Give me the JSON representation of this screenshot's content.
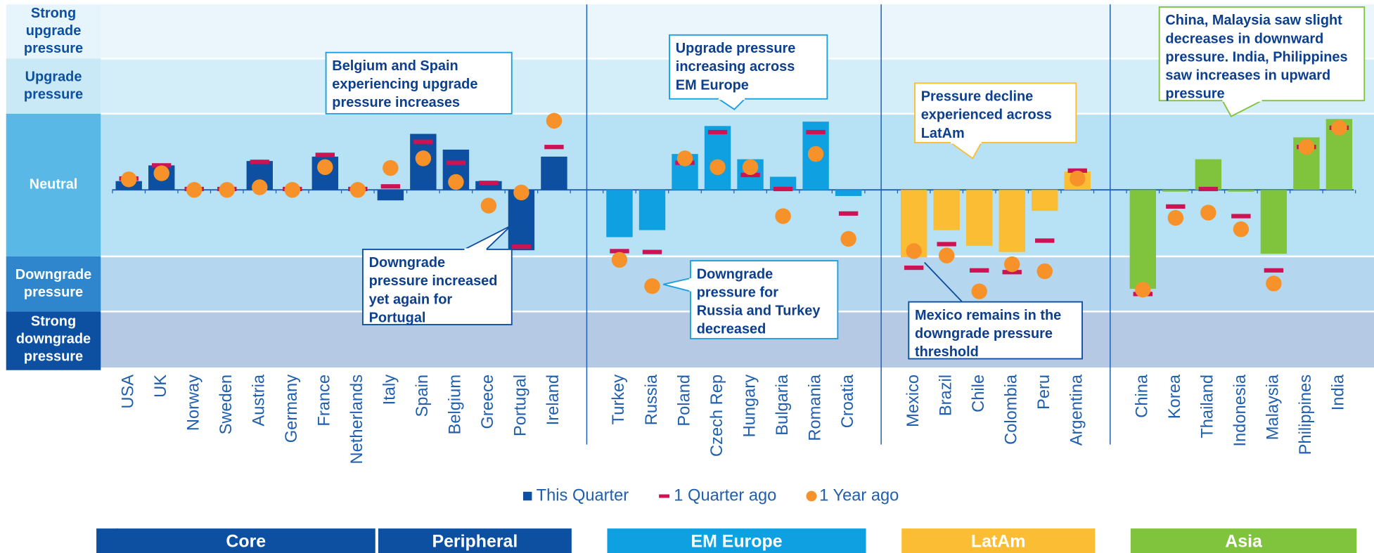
{
  "chart_data": {
    "type": "bar",
    "categories": [
      "USA",
      "UK",
      "Norway",
      "Sweden",
      "Austria",
      "Germany",
      "France",
      "Netherlands",
      "Italy",
      "Spain",
      "Belgium",
      "Greece",
      "Portugal",
      "Ireland",
      "Turkey",
      "Russia",
      "Poland",
      "Czech Rep",
      "Hungary",
      "Bulgaria",
      "Romania",
      "Croatia",
      "Mexico",
      "Brazil",
      "Chile",
      "Colombia",
      "Peru",
      "Argentina",
      "China",
      "Korea",
      "Thailand",
      "Indonesia",
      "Malaysia",
      "Philippines",
      "India"
    ],
    "groups": [
      {
        "name": "Core",
        "count": 8,
        "color": "#0d4fa0"
      },
      {
        "name": "Peripheral",
        "count": 6,
        "color": "#0d4fa0"
      },
      {
        "name": "EM Europe",
        "count": 8,
        "color": "#0ea0e0"
      },
      {
        "name": "LatAm",
        "count": 6,
        "color": "#fbbd33"
      },
      {
        "name": "Asia",
        "count": 7,
        "color": "#80c33c"
      }
    ],
    "series": [
      {
        "name": "This Quarter",
        "color": "#0d4fa0",
        "values": [
          1.0,
          2.8,
          0,
          0,
          3.3,
          0,
          3.8,
          0,
          -1.2,
          6.4,
          4.6,
          1.0,
          -6.9,
          3.8,
          -5.4,
          -4.6,
          4.1,
          7.3,
          3.5,
          1.5,
          7.8,
          -0.7,
          -7.7,
          -4.6,
          -6.4,
          -7.1,
          -2.4,
          2.1,
          -11.3,
          -0.2,
          3.5,
          -0.2,
          -7.3,
          6.0,
          8.1
        ]
      },
      {
        "name": "1 Quarter ago",
        "color": "#cc1455",
        "values": [
          1.3,
          2.8,
          0.1,
          0.1,
          3.2,
          0.1,
          4.0,
          0.1,
          0.4,
          5.5,
          3.1,
          0.8,
          -6.5,
          4.9,
          -7.0,
          -7.1,
          3.1,
          6.6,
          1.7,
          0.1,
          6.6,
          -2.7,
          -8.9,
          -6.2,
          -9.2,
          -9.4,
          -5.8,
          2.2,
          -11.9,
          -1.9,
          0.1,
          -3.0,
          -9.2,
          4.9,
          7.1
        ]
      },
      {
        "name": "1 Year ago",
        "color": "#f7922a",
        "values": [
          1.2,
          1.9,
          0,
          0,
          0.3,
          0,
          2.6,
          0,
          2.5,
          3.6,
          0.9,
          -1.8,
          -0.3,
          7.9,
          -8.0,
          -11.0,
          3.6,
          2.6,
          2.6,
          -3.0,
          4.1,
          -5.6,
          -7.0,
          -7.5,
          -11.6,
          -8.5,
          -9.3,
          1.3,
          -11.4,
          -3.2,
          -2.6,
          -4.5,
          -10.7,
          4.9,
          7.1
        ]
      }
    ],
    "ylim": [
      -20.3,
      21.2
    ],
    "bands": [
      {
        "lines": [
          "Strong",
          "upgrade",
          "pressure"
        ],
        "from": 15,
        "to": 21.2,
        "color": "#eaf6fc"
      },
      {
        "lines": [
          "Upgrade",
          "pressure"
        ],
        "from": 8.7,
        "to": 15,
        "color": "#d4eef9"
      },
      {
        "lines": [
          "Neutral"
        ],
        "from": -7.6,
        "to": 8.7,
        "color": "#b7e1f4"
      },
      {
        "lines": [
          "Downgrade",
          "pressure"
        ],
        "from": -13.9,
        "to": -7.6,
        "color": "#b4d6ee"
      },
      {
        "lines": [
          "Strong",
          "downgrade",
          "pressure"
        ],
        "from": -20.3,
        "to": -13.9,
        "color": "#b5c9e4"
      }
    ],
    "annotations": [
      {
        "lines": [
          "Belgium and Spain",
          "experiencing upgrade",
          "pressure  increases"
        ],
        "color": "#1aa0e0"
      },
      {
        "lines": [
          "Upgrade pressure",
          "increasing across",
          "EM Europe"
        ],
        "color": "#1aa0e0"
      },
      {
        "lines": [
          "Pressure decline",
          "experienced across",
          "LatAm"
        ],
        "color": "#fbbd33"
      },
      {
        "lines": [
          "China, Malaysia saw slight",
          "decreases in downward",
          "pressure. India, Philippines",
          "saw increases in upward",
          "pressure"
        ],
        "color": "#80c33c"
      },
      {
        "lines": [
          "Downgrade",
          "pressure increased",
          "yet again for",
          "Portugal"
        ],
        "color": "#0d4fa0"
      },
      {
        "lines": [
          "Downgrade",
          "pressure for",
          "Russia and Turkey",
          "decreased"
        ],
        "color": "#1aa0e0"
      },
      {
        "lines": [
          "Mexico remains in the",
          "downgrade pressure",
          "threshold"
        ],
        "color": "#0d4fa0"
      }
    ]
  }
}
